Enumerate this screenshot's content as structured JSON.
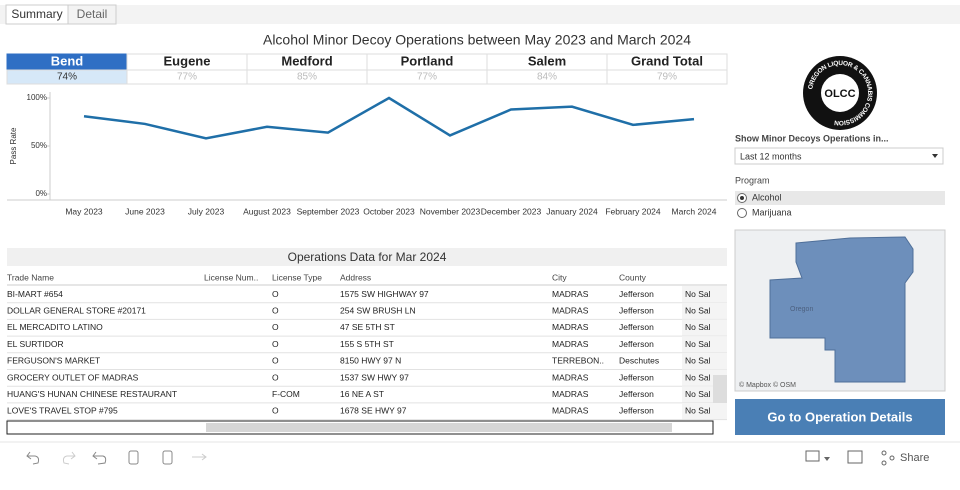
{
  "tabs": [
    "Summary",
    "Detail"
  ],
  "dashboard_title": "Alcohol Minor Decoy Operations between May 2023 and March 2024",
  "selected_region_index": 0,
  "regions": [
    {
      "name": "Bend",
      "pass_rate": "74%"
    },
    {
      "name": "Eugene",
      "pass_rate": "77%"
    },
    {
      "name": "Medford",
      "pass_rate": "85%"
    },
    {
      "name": "Portland",
      "pass_rate": "77%"
    },
    {
      "name": "Salem",
      "pass_rate": "84%"
    },
    {
      "name": "Grand Total",
      "pass_rate": "79%"
    }
  ],
  "chart_data": {
    "type": "line",
    "y_label": "Pass Rate",
    "categories": [
      "May 2023",
      "June 2023",
      "July 2023",
      "August 2023",
      "September 2023",
      "October 2023",
      "November 2023",
      "December 2023",
      "January 2024",
      "February 2024",
      "March 2024"
    ],
    "values": [
      81,
      73,
      58,
      70,
      64,
      100,
      61,
      88,
      91,
      72,
      78
    ],
    "color": "#1f6fa8",
    "ylim": [
      0,
      100
    ],
    "yticks": [
      {
        "value": 0,
        "label": "0%"
      },
      {
        "value": 50,
        "label": "50%"
      },
      {
        "value": 100,
        "label": "100%"
      }
    ],
    "grid": false
  },
  "logo": {
    "ring_text": "OREGON LIQUOR & CANNABIS COMMISSION",
    "center": "OLCC"
  },
  "filter": {
    "label": "Show Minor Decoys Operations in...",
    "selected": "Last 12 months"
  },
  "program": {
    "label": "Program",
    "options": [
      "Alcohol",
      "Marijuana"
    ],
    "selected_index": 0
  },
  "map": {
    "label": "Oregon",
    "attribution": "© Mapbox © OSM"
  },
  "button": "Go to Operation Details",
  "table": {
    "title": "Operations Data for Mar 2024",
    "headers": [
      "Trade Name",
      "License Num..",
      "License Type",
      "Address",
      "City",
      "County"
    ],
    "rows": [
      {
        "trade_name": "BI-MART #654",
        "license_type": "O",
        "address": "1575 SW HIGHWAY 97",
        "city": "MADRAS",
        "county": "Jefferson",
        "status": "No Sal"
      },
      {
        "trade_name": "DOLLAR GENERAL STORE #20171",
        "license_type": "O",
        "address": "254 SW BRUSH LN",
        "city": "MADRAS",
        "county": "Jefferson",
        "status": "No Sal"
      },
      {
        "trade_name": "EL MERCADITO LATINO",
        "license_type": "O",
        "address": "47 SE 5TH ST",
        "city": "MADRAS",
        "county": "Jefferson",
        "status": "No Sal"
      },
      {
        "trade_name": "EL SURTIDOR",
        "license_type": "O",
        "address": "155 S 5TH ST",
        "city": "MADRAS",
        "county": "Jefferson",
        "status": "No Sal"
      },
      {
        "trade_name": "FERGUSON'S MARKET",
        "license_type": "O",
        "address": "8150 HWY 97 N",
        "city": "TERREBON..",
        "county": "Deschutes",
        "status": "No Sal"
      },
      {
        "trade_name": "GROCERY OUTLET OF MADRAS",
        "license_type": "O",
        "address": "1537 SW HWY 97",
        "city": "MADRAS",
        "county": "Jefferson",
        "status": "No Sal"
      },
      {
        "trade_name": "HUANG'S HUNAN CHINESE RESTAURANT",
        "license_type": "F-COM",
        "address": "16 NE A ST",
        "city": "MADRAS",
        "county": "Jefferson",
        "status": "No Sal"
      },
      {
        "trade_name": "LOVE'S TRAVEL STOP #795",
        "license_type": "O",
        "address": "1678 SE HWY 97",
        "city": "MADRAS",
        "county": "Jefferson",
        "status": "No Sal"
      }
    ]
  },
  "toolbar": {
    "share": "Share"
  }
}
